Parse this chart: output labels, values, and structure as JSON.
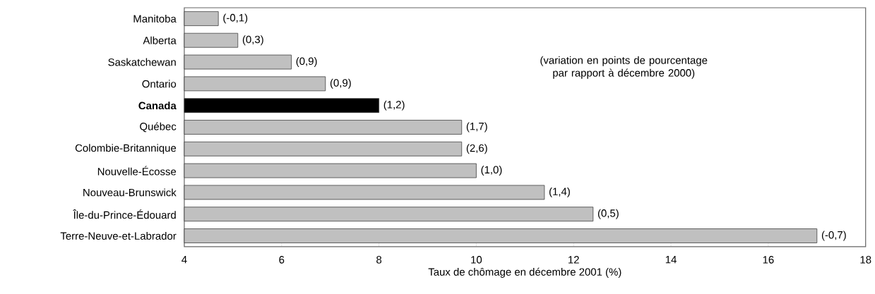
{
  "chart_data": {
    "type": "bar",
    "orientation": "horizontal",
    "categories": [
      "Manitoba",
      "Alberta",
      "Saskatchewan",
      "Ontario",
      "Canada",
      "Québec",
      "Colombie-Britannique",
      "Nouvelle-Écosse",
      "Nouveau-Brunswick",
      "Île-du-Prince-Édouard",
      "Terre-Neuve-et-Labrador"
    ],
    "values": [
      4.7,
      5.1,
      6.2,
      6.9,
      8.0,
      9.7,
      9.7,
      10.0,
      11.4,
      12.4,
      17.0
    ],
    "colors": [
      "#c0c0c0",
      "#c0c0c0",
      "#c0c0c0",
      "#c0c0c0",
      "#000000",
      "#c0c0c0",
      "#c0c0c0",
      "#c0c0c0",
      "#c0c0c0",
      "#c0c0c0",
      "#c0c0c0"
    ],
    "xlabel": "Taux de chômage en décembre 2001 (%)",
    "annotations": [
      {
        "text": "(-0,1)",
        "x": 4.7,
        "y": "Manitoba"
      },
      {
        "text": "(0,3)",
        "x": 5.1,
        "y": "Alberta"
      },
      {
        "text": "(0,9)",
        "x": 6.2,
        "y": "Saskatchewan"
      },
      {
        "text": "(0,9)",
        "x": 6.9,
        "y": "Ontario"
      },
      {
        "text": "(1,2)",
        "x": 8.0,
        "y": "Canada"
      },
      {
        "text": "(1,7)",
        "x": 9.7,
        "y": "Québec"
      },
      {
        "text": "(2,6)",
        "x": 9.7,
        "y": "Colombie-Britannique"
      },
      {
        "text": "(1,0)",
        "x": 10.0,
        "y": "Nouvelle-Écosse"
      },
      {
        "text": "(1,4)",
        "x": 11.4,
        "y": "Nouveau-Brunswick"
      },
      {
        "text": "(0,5)",
        "x": 12.4,
        "y": "Île-du-Prince-Édouard"
      },
      {
        "text": "(-0,7)",
        "x": 17.0,
        "y": "Terre-Neuve-et-Labrador"
      },
      "(variation en points de pourcentage par rapport à décembre 2000)"
    ],
    "xlim": [
      4,
      18
    ],
    "xticks": [
      4,
      6,
      8,
      10,
      12,
      14,
      16,
      18
    ]
  }
}
